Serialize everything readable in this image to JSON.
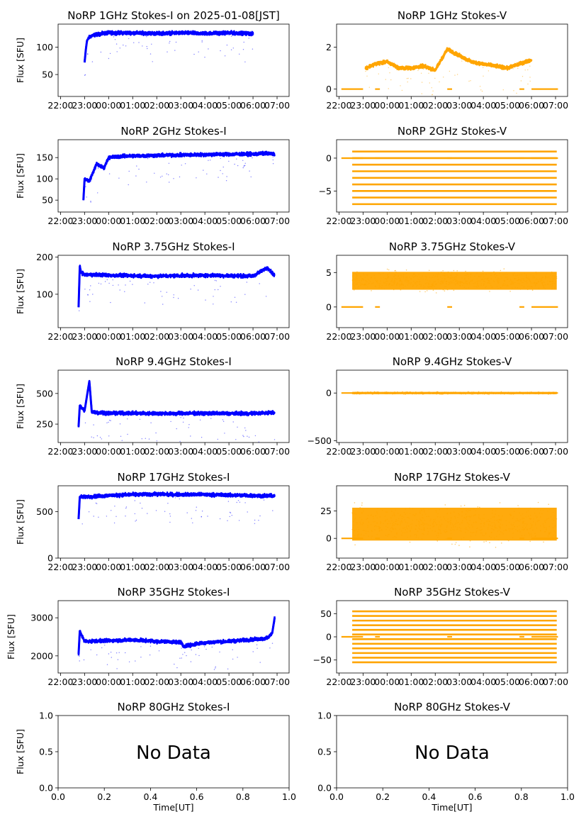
{
  "figure": {
    "suptitle_date": "2025-01-08[JST]",
    "time_ticks": [
      "22:00",
      "23:00",
      "00:00",
      "01:00",
      "02:00",
      "03:00",
      "04:00",
      "05:00",
      "06:00",
      "07:00"
    ],
    "colors": {
      "stokes_i": "#0000ff",
      "stokes_v": "#ffa500",
      "axis": "#000000"
    },
    "xlabel": "Time[UT]",
    "no_data_text": "No Data"
  },
  "chart_data": [
    {
      "id": "i1",
      "type": "scatter",
      "title": "NoRP 1GHz Stokes-I on 2025-01-08[JST]",
      "ylabel": "Flux [SFU]",
      "ylim": [
        10,
        142
      ],
      "yticks": [
        50,
        100
      ],
      "xlim": [
        -0.1,
        9.5
      ],
      "series": [
        {
          "name": "Stokes-I",
          "color": "#0000ff",
          "t": [
            1.0,
            1.05,
            1.1,
            1.2,
            1.3,
            1.5,
            1.8,
            2.0,
            3.0,
            4.0,
            5.0,
            6.0,
            7.0,
            7.8,
            8.0
          ],
          "y": [
            72,
            95,
            112,
            118,
            121,
            123,
            125,
            126,
            126,
            125,
            126,
            125,
            126,
            125,
            124
          ]
        }
      ]
    },
    {
      "id": "v1",
      "type": "scatter",
      "title": "NoRP 1GHz Stokes-V",
      "ylabel": "",
      "ylim": [
        -0.35,
        3.1
      ],
      "yticks": [
        0,
        2
      ],
      "xlim": [
        -0.1,
        9.5
      ],
      "series": [
        {
          "name": "Stokes-V",
          "color": "#ffa500",
          "t": [
            1.1,
            1.5,
            2.0,
            2.5,
            3.0,
            3.5,
            4.0,
            4.5,
            5.0,
            5.5,
            6.0,
            6.5,
            7.0,
            7.5,
            8.0
          ],
          "y": [
            1.0,
            1.2,
            1.3,
            1.0,
            1.0,
            1.1,
            0.9,
            1.9,
            1.6,
            1.3,
            1.2,
            1.1,
            1.0,
            1.2,
            1.4
          ]
        }
      ]
    },
    {
      "id": "i2",
      "type": "scatter",
      "title": "NoRP 2GHz Stokes-I",
      "ylabel": "Flux [SFU]",
      "ylim": [
        22,
        192
      ],
      "yticks": [
        50,
        100,
        150
      ],
      "xlim": [
        -0.1,
        9.5
      ],
      "series": [
        {
          "name": "Stokes-I",
          "color": "#0000ff",
          "t": [
            0.95,
            1.0,
            1.2,
            1.5,
            1.8,
            2.0,
            2.5,
            3.0,
            4.0,
            5.0,
            6.0,
            7.0,
            8.0,
            8.5,
            8.9
          ],
          "y": [
            50,
            100,
            95,
            135,
            125,
            150,
            153,
            154,
            155,
            156,
            157,
            158,
            158,
            160,
            158
          ]
        }
      ]
    },
    {
      "id": "v2",
      "type": "scatter",
      "title": "NoRP 2GHz Stokes-V",
      "ylabel": "",
      "ylim": [
        -8.2,
        2.8
      ],
      "yticks": [
        -5,
        0
      ],
      "xlim": [
        -0.1,
        9.5
      ],
      "series": [
        {
          "name": "Stokes-V",
          "color": "#ffa500",
          "levels": [
            1,
            0,
            -1,
            -2,
            -3,
            -4,
            -5,
            -6,
            -7
          ]
        }
      ]
    },
    {
      "id": "i3",
      "type": "scatter",
      "title": "NoRP 3.75GHz Stokes-I",
      "ylabel": "Flux [SFU]",
      "ylim": [
        10,
        205
      ],
      "yticks": [
        100,
        200
      ],
      "xlim": [
        -0.1,
        9.5
      ],
      "series": [
        {
          "name": "Stokes-I",
          "color": "#0000ff",
          "t": [
            0.75,
            0.8,
            0.85,
            1.0,
            1.5,
            2.0,
            3.0,
            4.0,
            5.0,
            6.0,
            7.0,
            8.0,
            8.6,
            8.9
          ],
          "y": [
            65,
            175,
            160,
            152,
            153,
            151,
            150,
            149,
            150,
            151,
            150,
            149,
            172,
            150
          ]
        }
      ]
    },
    {
      "id": "v3",
      "type": "scatter",
      "title": "NoRP 3.75GHz Stokes-V",
      "ylabel": "",
      "ylim": [
        -3.0,
        7.5
      ],
      "yticks": [
        0,
        5
      ],
      "xlim": [
        -0.1,
        9.5
      ],
      "series": [
        {
          "name": "Stokes-V",
          "color": "#ffa500",
          "center": 3.8,
          "spread": 1.3
        }
      ]
    },
    {
      "id": "i4",
      "type": "scatter",
      "title": "NoRP 9.4GHz Stokes-I",
      "ylabel": "Flux [SFU]",
      "ylim": [
        100,
        690
      ],
      "yticks": [
        250,
        500
      ],
      "xlim": [
        -0.1,
        9.5
      ],
      "series": [
        {
          "name": "Stokes-I",
          "color": "#0000ff",
          "t": [
            0.75,
            0.8,
            1.0,
            1.2,
            1.3,
            1.5,
            2.0,
            3.0,
            4.0,
            5.0,
            6.0,
            7.0,
            8.0,
            8.9
          ],
          "y": [
            230,
            400,
            360,
            600,
            350,
            345,
            340,
            338,
            337,
            337,
            338,
            337,
            337,
            345
          ]
        }
      ]
    },
    {
      "id": "v4",
      "type": "scatter",
      "title": "NoRP 9.4GHz Stokes-V",
      "ylabel": "",
      "ylim": [
        -520,
        240
      ],
      "yticks": [
        -500,
        0
      ],
      "xlim": [
        -0.1,
        9.5
      ],
      "series": [
        {
          "name": "Stokes-V",
          "color": "#ffa500",
          "center": 0,
          "spread": 12
        }
      ]
    },
    {
      "id": "i5",
      "type": "scatter",
      "title": "NoRP 17GHz Stokes-I",
      "ylabel": "Flux [SFU]",
      "ylim": [
        0,
        780
      ],
      "yticks": [
        0,
        500
      ],
      "xlim": [
        -0.1,
        9.5
      ],
      "series": [
        {
          "name": "Stokes-I",
          "color": "#0000ff",
          "t": [
            0.75,
            0.8,
            1.0,
            2.0,
            3.0,
            4.0,
            5.0,
            6.0,
            7.0,
            8.0,
            8.9
          ],
          "y": [
            420,
            660,
            660,
            675,
            685,
            690,
            685,
            685,
            680,
            675,
            670
          ]
        }
      ]
    },
    {
      "id": "v5",
      "type": "scatter",
      "title": "NoRP 17GHz Stokes-V",
      "ylabel": "",
      "ylim": [
        -18,
        48
      ],
      "yticks": [
        0,
        25
      ],
      "xlim": [
        -0.1,
        9.5
      ],
      "series": [
        {
          "name": "Stokes-V",
          "color": "#ffa500",
          "center": 13,
          "spread": 15
        }
      ]
    },
    {
      "id": "i6",
      "type": "scatter",
      "title": "NoRP 35GHz Stokes-I",
      "ylabel": "Flux [SFU]",
      "ylim": [
        1550,
        3450
      ],
      "yticks": [
        2000,
        3000
      ],
      "xlim": [
        -0.1,
        9.5
      ],
      "series": [
        {
          "name": "Stokes-I",
          "color": "#0000ff",
          "t": [
            0.75,
            0.8,
            1.0,
            2.0,
            3.0,
            4.0,
            5.0,
            5.1,
            6.0,
            7.0,
            8.0,
            8.6,
            8.8,
            8.9
          ],
          "y": [
            2050,
            2650,
            2380,
            2400,
            2420,
            2380,
            2360,
            2250,
            2350,
            2380,
            2430,
            2460,
            2600,
            3000
          ]
        }
      ]
    },
    {
      "id": "v6",
      "type": "scatter",
      "title": "NoRP 35GHz Stokes-V",
      "ylabel": "",
      "ylim": [
        -78,
        78
      ],
      "yticks": [
        -50,
        0,
        50
      ],
      "xlim": [
        -0.1,
        9.5
      ],
      "series": [
        {
          "name": "Stokes-V",
          "color": "#ffa500",
          "levels": [
            55,
            45,
            35,
            25,
            15,
            5,
            -5,
            -15,
            -25,
            -35,
            -45,
            -55
          ]
        }
      ]
    },
    {
      "id": "i7",
      "type": "empty",
      "title": "NoRP 80GHz Stokes-I",
      "ylabel": "Flux [SFU]",
      "xlabel": "Time[UT]",
      "xlim": [
        0,
        1
      ],
      "ylim": [
        0,
        1
      ],
      "xticks": [
        "0.0",
        "0.2",
        "0.4",
        "0.6",
        "0.8",
        "1.0"
      ],
      "yticks": [
        "0.0",
        "0.5",
        "1.0"
      ]
    },
    {
      "id": "v7",
      "type": "empty",
      "title": "NoRP 80GHz Stokes-V",
      "ylabel": "",
      "xlabel": "Time[UT]",
      "xlim": [
        0,
        1
      ],
      "ylim": [
        0,
        1
      ],
      "xticks": [
        "0.0",
        "0.2",
        "0.4",
        "0.6",
        "0.8",
        "1.0"
      ],
      "yticks": [
        "0.0",
        "0.5",
        "1.0"
      ]
    }
  ]
}
